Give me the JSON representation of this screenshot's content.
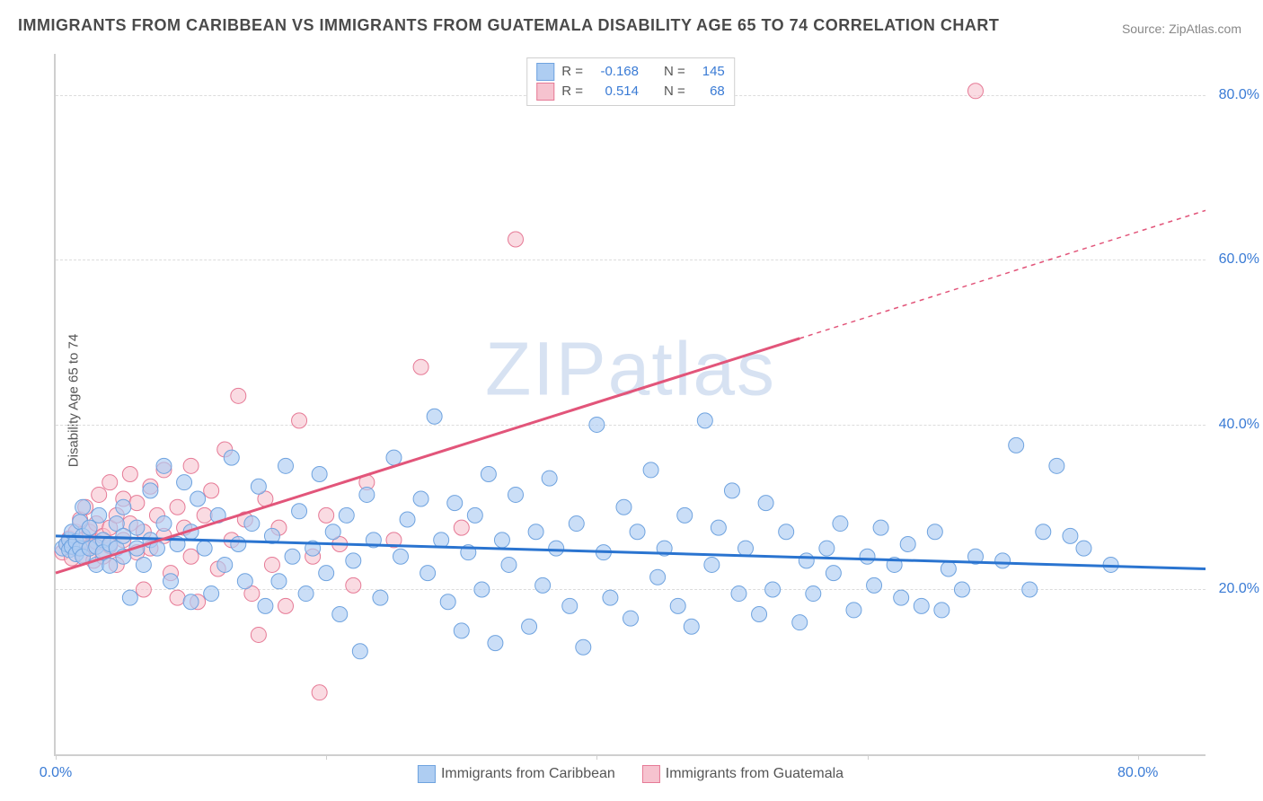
{
  "title": "IMMIGRANTS FROM CARIBBEAN VS IMMIGRANTS FROM GUATEMALA DISABILITY AGE 65 TO 74 CORRELATION CHART",
  "source": "Source: ZipAtlas.com",
  "y_axis_label": "Disability Age 65 to 74",
  "watermark": "ZIPatlas",
  "chart": {
    "type": "scatter",
    "xlim": [
      0,
      85
    ],
    "ylim": [
      0,
      85
    ],
    "x_ticks": [
      0,
      20,
      40,
      60,
      80
    ],
    "y_ticks": [
      20,
      40,
      60,
      80
    ],
    "x_tick_labels": [
      "0.0%",
      "",
      "",
      "",
      "80.0%"
    ],
    "y_tick_labels": [
      "20.0%",
      "40.0%",
      "60.0%",
      "80.0%"
    ],
    "background_color": "#ffffff",
    "grid_color": "#dcdcdc",
    "axis_color": "#cfcfcf",
    "tick_label_color": "#3a7bd5",
    "marker_radius": 8.5,
    "marker_stroke_width": 1,
    "trend_width": 3,
    "trend_dash_width": 1.5
  },
  "series": [
    {
      "id": "caribbean",
      "name": "Immigrants from Caribbean",
      "fill": "#aecdf2",
      "stroke": "#6fa3df",
      "fill_opacity": 0.65,
      "stats": {
        "R": "-0.168",
        "N": "145"
      },
      "trend": {
        "x1": 0,
        "y1": 26.5,
        "x2": 85,
        "y2": 22.5,
        "solid_until_x": 85,
        "color": "#2a74d0"
      },
      "points": [
        [
          0.5,
          25.0
        ],
        [
          0.8,
          25.5
        ],
        [
          1.0,
          26.0
        ],
        [
          1.0,
          24.8
        ],
        [
          1.2,
          27.0
        ],
        [
          1.2,
          25.2
        ],
        [
          1.5,
          25.8
        ],
        [
          1.5,
          24.3
        ],
        [
          1.8,
          28.2
        ],
        [
          1.8,
          25.0
        ],
        [
          2.0,
          30.0
        ],
        [
          2.0,
          26.5
        ],
        [
          2.0,
          24.0
        ],
        [
          2.5,
          27.5
        ],
        [
          2.5,
          25.0
        ],
        [
          3.0,
          25.2
        ],
        [
          3.0,
          23.0
        ],
        [
          3.2,
          29.0
        ],
        [
          3.5,
          26.0
        ],
        [
          3.5,
          24.5
        ],
        [
          4.0,
          25.5
        ],
        [
          4.0,
          22.9
        ],
        [
          4.5,
          28.0
        ],
        [
          4.5,
          25.0
        ],
        [
          5.0,
          30.0
        ],
        [
          5.0,
          26.5
        ],
        [
          5.0,
          24.0
        ],
        [
          5.5,
          19.0
        ],
        [
          6.0,
          25.0
        ],
        [
          6.0,
          27.5
        ],
        [
          6.5,
          23.0
        ],
        [
          7.0,
          32.0
        ],
        [
          7.0,
          26.0
        ],
        [
          7.5,
          25.0
        ],
        [
          8.0,
          35.0
        ],
        [
          8.0,
          28.0
        ],
        [
          8.5,
          21.0
        ],
        [
          9.0,
          25.5
        ],
        [
          9.5,
          33.0
        ],
        [
          10.0,
          27.0
        ],
        [
          10.0,
          18.5
        ],
        [
          10.5,
          31.0
        ],
        [
          11.0,
          25.0
        ],
        [
          11.5,
          19.5
        ],
        [
          12.0,
          29.0
        ],
        [
          12.5,
          23.0
        ],
        [
          13.0,
          36.0
        ],
        [
          13.5,
          25.5
        ],
        [
          14.0,
          21.0
        ],
        [
          14.5,
          28.0
        ],
        [
          15.0,
          32.5
        ],
        [
          15.5,
          18.0
        ],
        [
          16.0,
          26.5
        ],
        [
          16.5,
          21.0
        ],
        [
          17.0,
          35.0
        ],
        [
          17.5,
          24.0
        ],
        [
          18.0,
          29.5
        ],
        [
          18.5,
          19.5
        ],
        [
          19.0,
          25.0
        ],
        [
          19.5,
          34.0
        ],
        [
          20.0,
          22.0
        ],
        [
          20.5,
          27.0
        ],
        [
          21.0,
          17.0
        ],
        [
          21.5,
          29.0
        ],
        [
          22.0,
          23.5
        ],
        [
          22.5,
          12.5
        ],
        [
          23.0,
          31.5
        ],
        [
          23.5,
          26.0
        ],
        [
          24.0,
          19.0
        ],
        [
          25.0,
          36.0
        ],
        [
          25.5,
          24.0
        ],
        [
          26.0,
          28.5
        ],
        [
          27.0,
          31.0
        ],
        [
          27.5,
          22.0
        ],
        [
          28.0,
          41.0
        ],
        [
          28.5,
          26.0
        ],
        [
          29.0,
          18.5
        ],
        [
          29.5,
          30.5
        ],
        [
          30.0,
          15.0
        ],
        [
          30.5,
          24.5
        ],
        [
          31.0,
          29.0
        ],
        [
          31.5,
          20.0
        ],
        [
          32.0,
          34.0
        ],
        [
          32.5,
          13.5
        ],
        [
          33.0,
          26.0
        ],
        [
          33.5,
          23.0
        ],
        [
          34.0,
          31.5
        ],
        [
          35.0,
          15.5
        ],
        [
          35.5,
          27.0
        ],
        [
          36.0,
          20.5
        ],
        [
          36.5,
          33.5
        ],
        [
          37.0,
          25.0
        ],
        [
          38.0,
          18.0
        ],
        [
          38.5,
          28.0
        ],
        [
          39.0,
          13.0
        ],
        [
          40.0,
          40.0
        ],
        [
          40.5,
          24.5
        ],
        [
          41.0,
          19.0
        ],
        [
          42.0,
          30.0
        ],
        [
          42.5,
          16.5
        ],
        [
          43.0,
          27.0
        ],
        [
          44.0,
          34.5
        ],
        [
          44.5,
          21.5
        ],
        [
          45.0,
          25.0
        ],
        [
          46.0,
          18.0
        ],
        [
          46.5,
          29.0
        ],
        [
          47.0,
          15.5
        ],
        [
          48.0,
          40.5
        ],
        [
          48.5,
          23.0
        ],
        [
          49.0,
          27.5
        ],
        [
          50.0,
          32.0
        ],
        [
          50.5,
          19.5
        ],
        [
          51.0,
          25.0
        ],
        [
          52.0,
          17.0
        ],
        [
          52.5,
          30.5
        ],
        [
          53.0,
          20.0
        ],
        [
          54.0,
          27.0
        ],
        [
          55.0,
          16.0
        ],
        [
          55.5,
          23.5
        ],
        [
          56.0,
          19.5
        ],
        [
          57.0,
          25.0
        ],
        [
          57.5,
          22.0
        ],
        [
          58.0,
          28.0
        ],
        [
          59.0,
          17.5
        ],
        [
          60.0,
          24.0
        ],
        [
          60.5,
          20.5
        ],
        [
          61.0,
          27.5
        ],
        [
          62.0,
          23.0
        ],
        [
          62.5,
          19.0
        ],
        [
          63.0,
          25.5
        ],
        [
          64.0,
          18.0
        ],
        [
          65.0,
          27.0
        ],
        [
          65.5,
          17.5
        ],
        [
          66.0,
          22.5
        ],
        [
          67.0,
          20.0
        ],
        [
          68.0,
          24.0
        ],
        [
          70.0,
          23.5
        ],
        [
          71.0,
          37.5
        ],
        [
          72.0,
          20.0
        ],
        [
          73.0,
          27.0
        ],
        [
          74.0,
          35.0
        ],
        [
          75.0,
          26.5
        ],
        [
          76.0,
          25.0
        ],
        [
          78.0,
          23.0
        ]
      ]
    },
    {
      "id": "guatemala",
      "name": "Immigrants from Guatemala",
      "fill": "#f6c3cf",
      "stroke": "#e67a96",
      "fill_opacity": 0.6,
      "stats": {
        "R": "0.514",
        "N": "68"
      },
      "trend": {
        "x1": 0,
        "y1": 22.0,
        "x2": 85,
        "y2": 66.0,
        "solid_until_x": 55,
        "color": "#e2557a"
      },
      "points": [
        [
          0.5,
          24.5
        ],
        [
          0.8,
          25.5
        ],
        [
          1.0,
          26.2
        ],
        [
          1.2,
          23.8
        ],
        [
          1.5,
          27.0
        ],
        [
          1.5,
          25.0
        ],
        [
          1.8,
          28.5
        ],
        [
          2.0,
          26.0
        ],
        [
          2.0,
          24.2
        ],
        [
          2.2,
          30.0
        ],
        [
          2.5,
          27.0
        ],
        [
          2.5,
          25.2
        ],
        [
          2.8,
          23.5
        ],
        [
          3.0,
          28.0
        ],
        [
          3.0,
          25.8
        ],
        [
          3.2,
          31.5
        ],
        [
          3.5,
          26.5
        ],
        [
          3.5,
          24.0
        ],
        [
          4.0,
          33.0
        ],
        [
          4.0,
          27.5
        ],
        [
          4.0,
          25.3
        ],
        [
          4.5,
          29.0
        ],
        [
          4.5,
          23.0
        ],
        [
          5.0,
          31.0
        ],
        [
          5.0,
          26.0
        ],
        [
          5.5,
          34.0
        ],
        [
          5.5,
          28.0
        ],
        [
          6.0,
          30.5
        ],
        [
          6.0,
          24.5
        ],
        [
          6.5,
          27.0
        ],
        [
          6.5,
          20.0
        ],
        [
          7.0,
          32.5
        ],
        [
          7.0,
          25.0
        ],
        [
          7.5,
          29.0
        ],
        [
          8.0,
          34.5
        ],
        [
          8.0,
          26.5
        ],
        [
          8.5,
          22.0
        ],
        [
          9.0,
          30.0
        ],
        [
          9.0,
          19.0
        ],
        [
          9.5,
          27.5
        ],
        [
          10.0,
          35.0
        ],
        [
          10.0,
          24.0
        ],
        [
          10.5,
          18.5
        ],
        [
          11.0,
          29.0
        ],
        [
          11.5,
          32.0
        ],
        [
          12.0,
          22.5
        ],
        [
          12.5,
          37.0
        ],
        [
          13.0,
          26.0
        ],
        [
          13.5,
          43.5
        ],
        [
          14.0,
          28.5
        ],
        [
          14.5,
          19.5
        ],
        [
          15.0,
          14.5
        ],
        [
          15.5,
          31.0
        ],
        [
          16.0,
          23.0
        ],
        [
          16.5,
          27.5
        ],
        [
          17.0,
          18.0
        ],
        [
          18.0,
          40.5
        ],
        [
          19.0,
          24.0
        ],
        [
          19.5,
          7.5
        ],
        [
          20.0,
          29.0
        ],
        [
          21.0,
          25.5
        ],
        [
          22.0,
          20.5
        ],
        [
          23.0,
          33.0
        ],
        [
          25.0,
          26.0
        ],
        [
          27.0,
          47.0
        ],
        [
          30.0,
          27.5
        ],
        [
          34.0,
          62.5
        ],
        [
          68.0,
          80.5
        ]
      ]
    }
  ],
  "legend_top": {
    "r_label": "R =",
    "n_label": "N ="
  },
  "legend_bottom": [
    {
      "series": 0
    },
    {
      "series": 1
    }
  ]
}
